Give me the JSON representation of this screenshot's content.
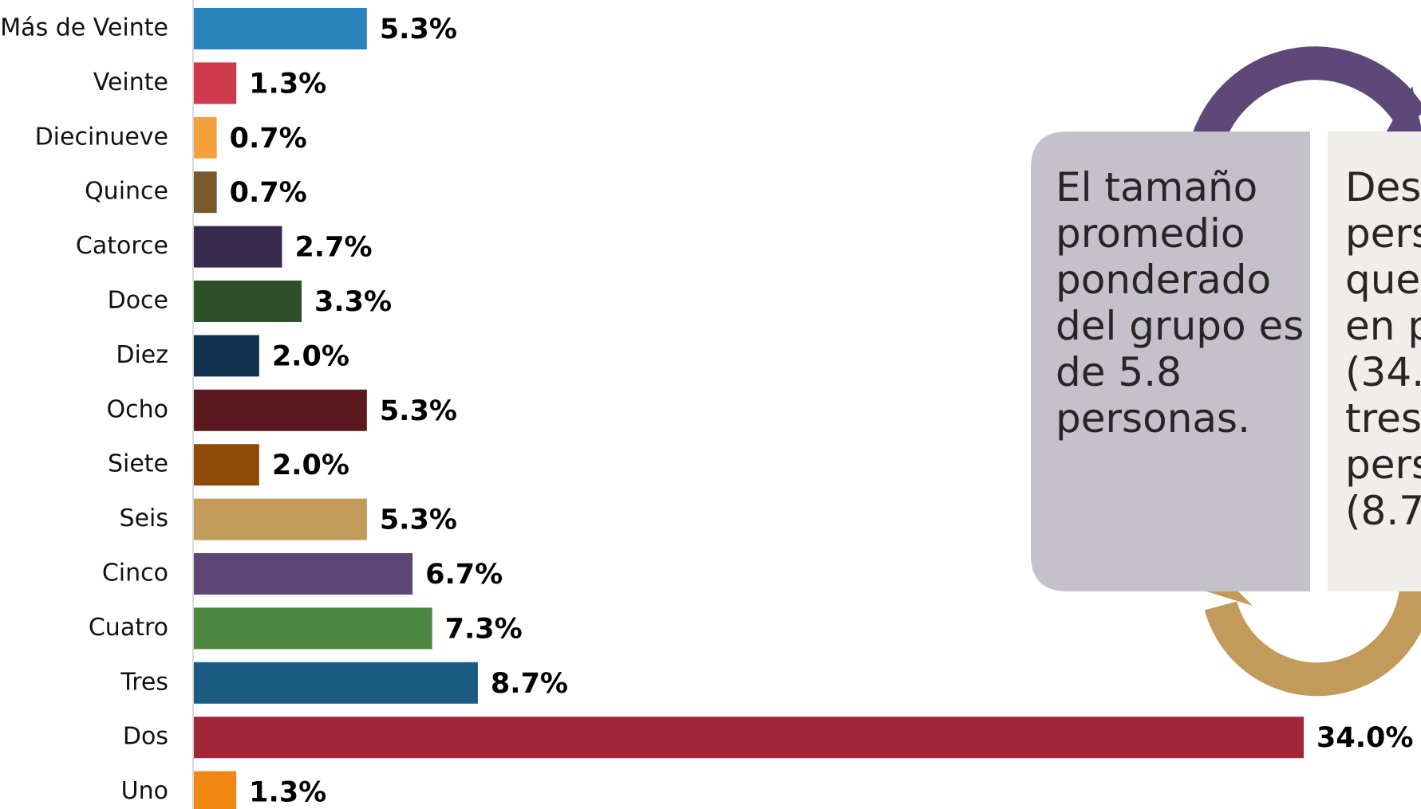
{
  "chart_data": {
    "type": "bar",
    "orientation": "horizontal",
    "categories": [
      "Más de Veinte",
      "Veinte",
      "Diecinueve",
      "Quince",
      "Catorce",
      "Doce",
      "Diez",
      "Ocho",
      "Siete",
      "Seis",
      "Cinco",
      "Cuatro",
      "Tres",
      "Dos",
      "Uno"
    ],
    "values": [
      5.3,
      1.3,
      0.7,
      0.7,
      2.7,
      3.3,
      2.0,
      5.3,
      2.0,
      5.3,
      6.7,
      7.3,
      8.7,
      34.0,
      1.3
    ],
    "value_labels": [
      "5.3%",
      "1.3%",
      "0.7%",
      "0.7%",
      "2.7%",
      "3.3%",
      "2.0%",
      "5.3%",
      "2.0%",
      "5.3%",
      "6.7%",
      "7.3%",
      "8.7%",
      "34.0%",
      "1.3%"
    ],
    "colors": [
      "#2a84be",
      "#cf3a4b",
      "#f4a03c",
      "#7a5a2c",
      "#382a4c",
      "#2e5028",
      "#11324e",
      "#5b1920",
      "#8f4a08",
      "#c29a5a",
      "#5d4676",
      "#4c8742",
      "#1c5b80",
      "#a22738",
      "#f08713"
    ],
    "xlim": [
      0,
      34
    ],
    "annotations": [
      [
        "El tamaño",
        "promedio",
        "ponderado",
        "del grupo es",
        "de 5.8",
        "personas."
      ],
      [
        "Dest",
        "pers",
        "que",
        "en p",
        "(34.",
        "tres",
        "pers",
        "(8.7"
      ]
    ]
  }
}
